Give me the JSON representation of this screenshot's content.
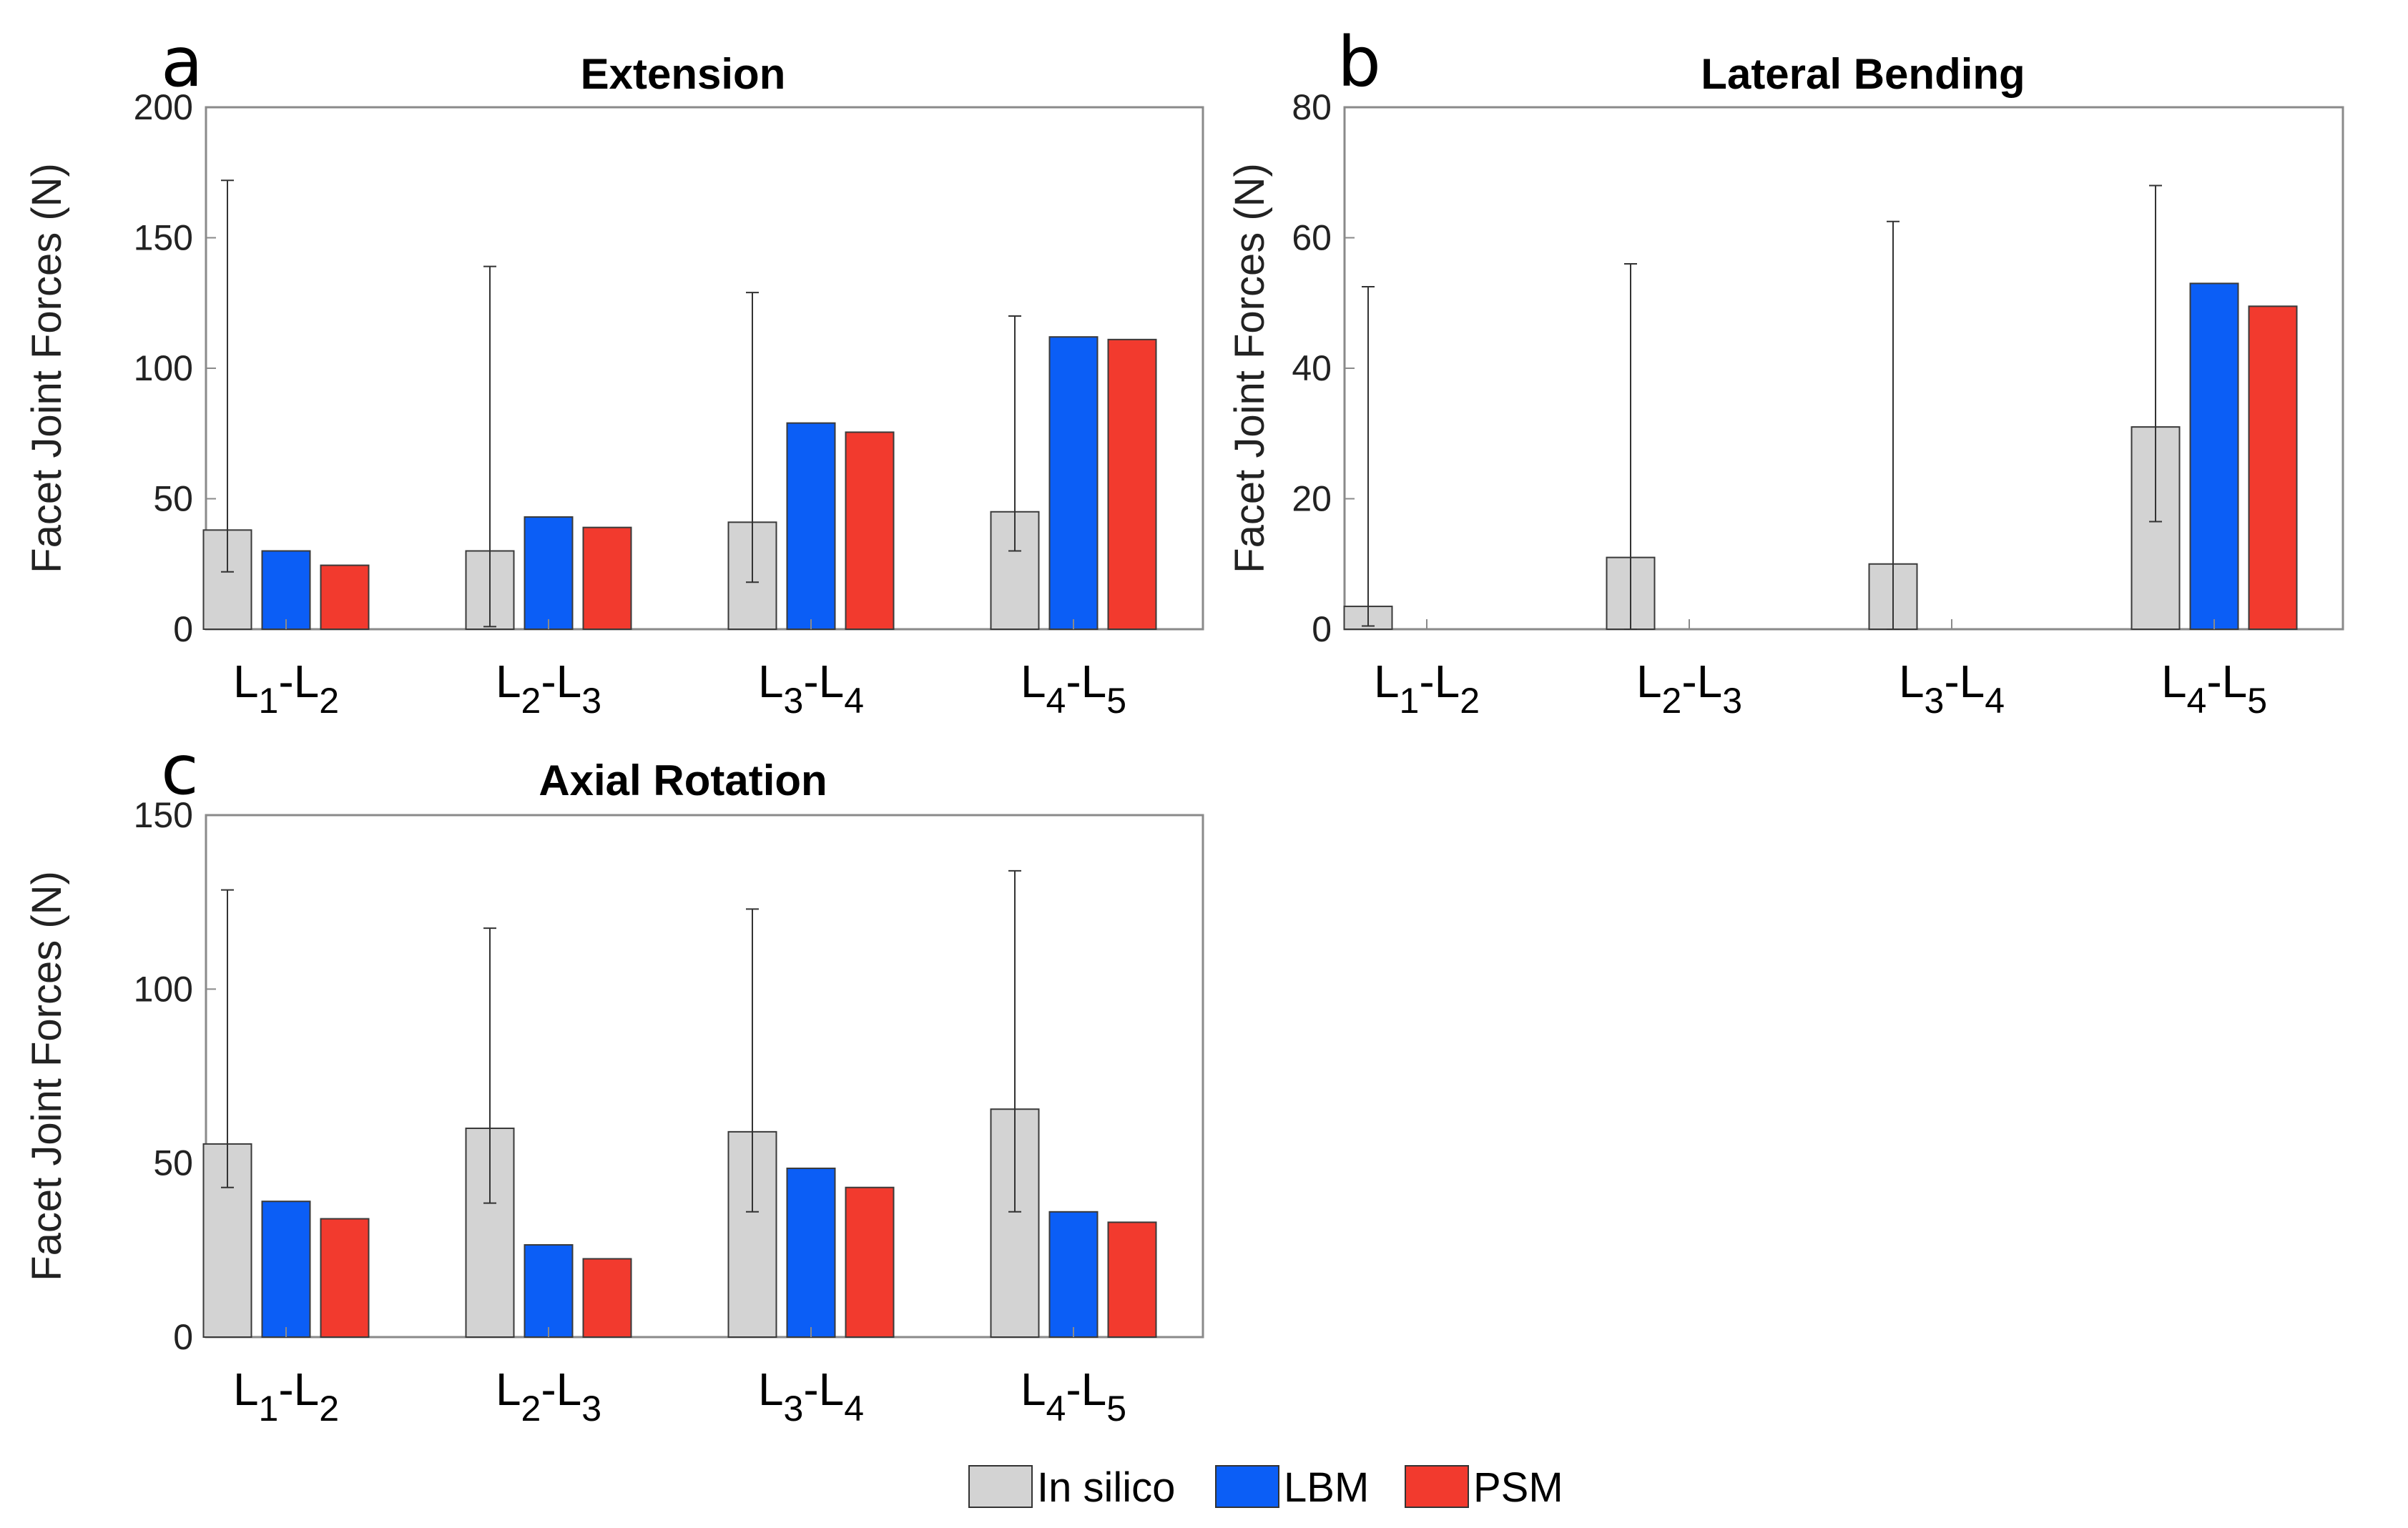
{
  "legend": [
    {
      "name": "In silico",
      "color": "#d3d3d3"
    },
    {
      "name": "LBM",
      "color": "#0b5ef6"
    },
    {
      "name": "PSM",
      "color": "#f23a2e"
    }
  ],
  "chart_data": [
    {
      "type": "bar",
      "panel_label": "a",
      "title": "Extension",
      "ylabel": "Facet Joint Forces (N)",
      "xlabel": "",
      "ylim": [
        0,
        200
      ],
      "yticks": [
        "0",
        "50",
        "100",
        "150",
        "200"
      ],
      "categories": [
        {
          "base1": "L",
          "sub1": "1",
          "sep": "-",
          "base2": "L",
          "sub2": "2"
        },
        {
          "base1": "L",
          "sub1": "2",
          "sep": "-",
          "base2": "L",
          "sub2": "3"
        },
        {
          "base1": "L",
          "sub1": "3",
          "sep": "-",
          "base2": "L",
          "sub2": "4"
        },
        {
          "base1": "L",
          "sub1": "4",
          "sep": "-",
          "base2": "L",
          "sub2": "5"
        }
      ],
      "series": [
        {
          "name": "In silico",
          "values": [
            38,
            30,
            41,
            45
          ],
          "error_low": [
            22,
            1,
            18,
            30
          ],
          "error_high": [
            172,
            139,
            129,
            120
          ]
        },
        {
          "name": "LBM",
          "values": [
            30,
            43,
            79,
            112
          ]
        },
        {
          "name": "PSM",
          "values": [
            24.5,
            39,
            75.5,
            111
          ]
        }
      ]
    },
    {
      "type": "bar",
      "panel_label": "b",
      "title": "Lateral Bending",
      "ylabel": "Facet Joint Forces (N)",
      "xlabel": "",
      "ylim": [
        0,
        80
      ],
      "yticks": [
        "0",
        "20",
        "40",
        "60",
        "80"
      ],
      "categories": [
        {
          "base1": "L",
          "sub1": "1",
          "sep": "-",
          "base2": "L",
          "sub2": "2"
        },
        {
          "base1": "L",
          "sub1": "2",
          "sep": "-",
          "base2": "L",
          "sub2": "3"
        },
        {
          "base1": "L",
          "sub1": "3",
          "sep": "-",
          "base2": "L",
          "sub2": "4"
        },
        {
          "base1": "L",
          "sub1": "4",
          "sep": "-",
          "base2": "L",
          "sub2": "5"
        }
      ],
      "series": [
        {
          "name": "In silico",
          "values": [
            3.5,
            11,
            10,
            31
          ],
          "error_low": [
            0.5,
            0,
            0,
            16.5
          ],
          "error_high": [
            52.5,
            56,
            62.5,
            68
          ]
        },
        {
          "name": "LBM",
          "values": [
            0,
            0,
            0,
            53
          ]
        },
        {
          "name": "PSM",
          "values": [
            0,
            0,
            0,
            49.5
          ]
        }
      ]
    },
    {
      "type": "bar",
      "panel_label": "c",
      "title": "Axial Rotation",
      "ylabel": "Facet Joint Forces (N)",
      "xlabel": "",
      "ylim": [
        0,
        150
      ],
      "yticks": [
        "0",
        "50",
        "100",
        "150"
      ],
      "categories": [
        {
          "base1": "L",
          "sub1": "1",
          "sep": "-",
          "base2": "L",
          "sub2": "2"
        },
        {
          "base1": "L",
          "sub1": "2",
          "sep": "-",
          "base2": "L",
          "sub2": "3"
        },
        {
          "base1": "L",
          "sub1": "3",
          "sep": "-",
          "base2": "L",
          "sub2": "4"
        },
        {
          "base1": "L",
          "sub1": "4",
          "sep": "-",
          "base2": "L",
          "sub2": "5"
        }
      ],
      "series": [
        {
          "name": "In silico",
          "values": [
            55.5,
            60,
            59,
            65.5
          ],
          "error_low": [
            43,
            38.5,
            36,
            36
          ],
          "error_high": [
            128.5,
            117.5,
            123,
            134
          ]
        },
        {
          "name": "LBM",
          "values": [
            39,
            26.5,
            48.5,
            36
          ]
        },
        {
          "name": "PSM",
          "values": [
            34,
            22.5,
            43,
            33
          ]
        }
      ]
    }
  ]
}
